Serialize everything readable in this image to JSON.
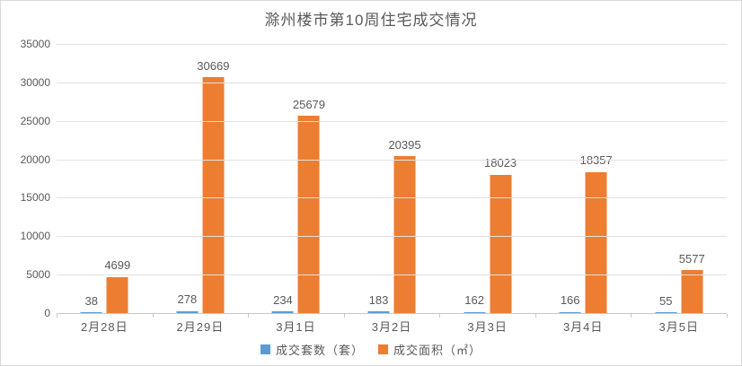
{
  "chart_data": {
    "type": "bar",
    "title": "滁州楼市第10周住宅成交情况",
    "categories": [
      "2月28日",
      "2月29日",
      "3月1日",
      "3月2日",
      "3月3日",
      "3月4日",
      "3月5日"
    ],
    "series": [
      {
        "name": "成交套数（套）",
        "color": "#5B9BD5",
        "values": [
          38,
          278,
          234,
          183,
          162,
          166,
          55
        ]
      },
      {
        "name": "成交面积（㎡）",
        "color": "#ED7D31",
        "values": [
          4699,
          30669,
          25679,
          20395,
          18023,
          18357,
          5577
        ]
      }
    ],
    "xlabel": "",
    "ylabel": "",
    "ylim": [
      0,
      35000
    ],
    "yticks": [
      0,
      5000,
      10000,
      15000,
      20000,
      25000,
      30000,
      35000
    ],
    "grid": true,
    "legend_position": "bottom",
    "data_labels": true,
    "colors": {
      "text": "#595959",
      "gridline": "#E2E2E2",
      "axis": "#C8C8C8",
      "border": "#D9D9D9",
      "background": "#FFFFFF"
    }
  }
}
